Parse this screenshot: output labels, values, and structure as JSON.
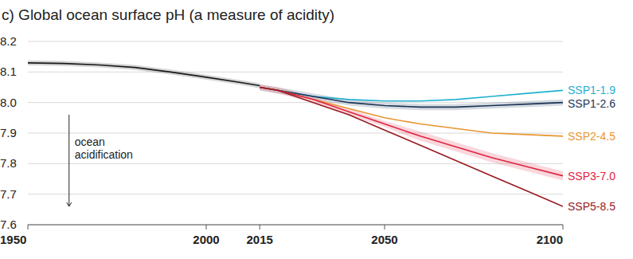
{
  "chart_data": {
    "type": "line",
    "title": "c) Global ocean surface pH (a measure of acidity)",
    "annotation": "ocean acidification",
    "xlim": [
      1950,
      2100
    ],
    "xticks": [
      1950,
      2000,
      2015,
      2050,
      2100
    ],
    "ylim": [
      7.6,
      8.2
    ],
    "yticks": [
      7.6,
      7.7,
      7.8,
      7.9,
      {
        "value": 8,
        "label": "8.0"
      },
      8.1,
      8.2
    ],
    "grid": true,
    "series": [
      {
        "color": "#1a1a1a",
        "x": [
          1950,
          1960,
          1970,
          1980,
          1990,
          2000,
          2010,
          2015
        ],
        "values": [
          8.13,
          8.128,
          8.123,
          8.115,
          8.1,
          8.083,
          8.065,
          8.055
        ],
        "lower": [
          8.122,
          8.12,
          8.115,
          8.107,
          8.092,
          8.075,
          8.057,
          8.047
        ],
        "upper": [
          8.138,
          8.136,
          8.131,
          8.123,
          8.108,
          8.091,
          8.073,
          8.063
        ]
      },
      {
        "name": "SSP1-1.9",
        "color": "#1fb0cf",
        "x": [
          2015,
          2020,
          2030,
          2040,
          2050,
          2060,
          2070,
          2080,
          2090,
          2100
        ],
        "values": [
          8.05,
          8.04,
          8.02,
          8.01,
          8.005,
          8.005,
          8.01,
          8.02,
          8.03,
          8.04
        ]
      },
      {
        "name": "SSP1-2.6",
        "color": "#1c3557",
        "x": [
          2015,
          2020,
          2030,
          2040,
          2050,
          2060,
          2070,
          2080,
          2090,
          2100
        ],
        "values": [
          8.05,
          8.04,
          8.02,
          8.0,
          7.99,
          7.985,
          7.985,
          7.99,
          7.995,
          8.0
        ],
        "lower": [
          8.04,
          8.03,
          8.01,
          7.99,
          7.98,
          7.975,
          7.975,
          7.98,
          7.985,
          7.99
        ],
        "upper": [
          8.06,
          8.05,
          8.03,
          8.01,
          8.0,
          7.995,
          7.995,
          8.0,
          8.005,
          8.01
        ]
      },
      {
        "name": "SSP2-4.5",
        "color": "#e9952f",
        "x": [
          2015,
          2020,
          2030,
          2040,
          2050,
          2060,
          2070,
          2080,
          2090,
          2100
        ],
        "values": [
          8.05,
          8.04,
          8.01,
          7.98,
          7.95,
          7.93,
          7.915,
          7.9,
          7.895,
          7.89
        ]
      },
      {
        "name": "SSP3-7.0",
        "color": "#e0223f",
        "x": [
          2015,
          2020,
          2030,
          2040,
          2050,
          2060,
          2070,
          2080,
          2090,
          2100
        ],
        "values": [
          8.05,
          8.04,
          8.01,
          7.97,
          7.93,
          7.89,
          7.855,
          7.82,
          7.79,
          7.76
        ],
        "lower": [
          8.04,
          8.03,
          8.0,
          7.96,
          7.92,
          7.875,
          7.84,
          7.805,
          7.775,
          7.745
        ],
        "upper": [
          8.06,
          8.05,
          8.02,
          7.98,
          7.94,
          7.905,
          7.87,
          7.835,
          7.805,
          7.775
        ]
      },
      {
        "name": "SSP5-8.5",
        "color": "#971a1f",
        "x": [
          2015,
          2020,
          2030,
          2040,
          2050,
          2060,
          2070,
          2080,
          2090,
          2100
        ],
        "values": [
          8.05,
          8.04,
          8.0,
          7.96,
          7.91,
          7.86,
          7.81,
          7.76,
          7.71,
          7.66
        ]
      }
    ]
  }
}
